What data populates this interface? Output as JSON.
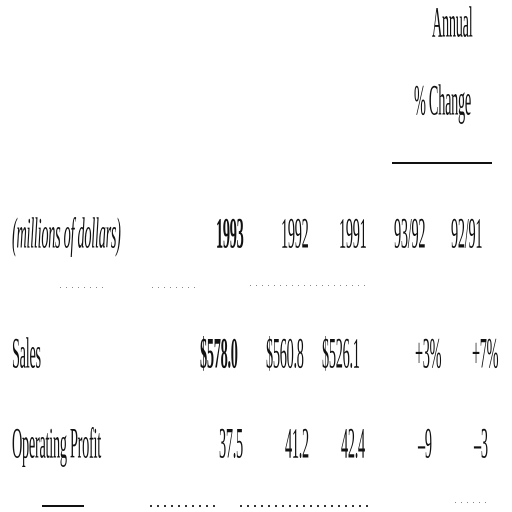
{
  "header": {
    "annual": "Annual",
    "pct_change": "% Change"
  },
  "columns": {
    "label": "(millions of dollars)",
    "y1993": "1993",
    "y1992": "1992",
    "y1991": "1991",
    "c9392": "93/92",
    "c9291": "92/91"
  },
  "rows": [
    {
      "label": "Sales",
      "v1993": "$578.0",
      "v1992": "$560.8",
      "v1991": "$526.1",
      "c9392": "+3%",
      "c9291": "+7%"
    },
    {
      "label": "Operating Profit",
      "v1993": "37.5",
      "v1992": "41.2",
      "v1991": "42.4",
      "c9392": "–9",
      "c9291": "–3"
    }
  ]
}
